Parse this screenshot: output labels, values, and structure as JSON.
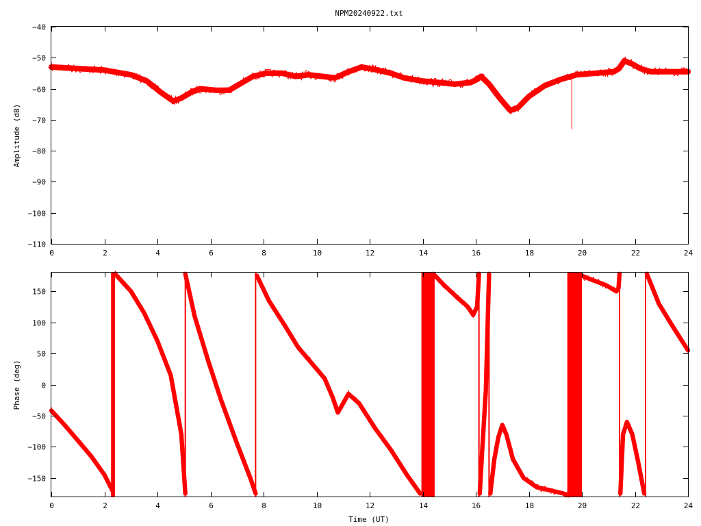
{
  "title": "NPM20240922.txt",
  "colors": {
    "trace": "#ff0000",
    "frame": "#000000",
    "background": "#ffffff"
  },
  "chart_data": [
    {
      "type": "line",
      "panel": "amplitude",
      "ylabel": "Amplitude (dB)",
      "xlabel": "",
      "xlim": [
        0,
        24
      ],
      "ylim": [
        -110,
        -40
      ],
      "xticks": [
        0,
        2,
        4,
        6,
        8,
        10,
        12,
        14,
        16,
        18,
        20,
        22,
        24
      ],
      "yticks": [
        -110,
        -100,
        -90,
        -80,
        -70,
        -60,
        -50,
        -40
      ],
      "ytick_labels": [
        "−110",
        "−100",
        "−90",
        "−80",
        "−70",
        "−60",
        "−50",
        "−40"
      ],
      "grid": false,
      "band_width_db": 1.8,
      "series": [
        {
          "x": [
            0,
            1,
            2,
            3,
            3.6,
            4.1,
            4.6,
            4.9,
            5.3,
            5.6,
            6.2,
            6.7,
            7.2,
            7.6,
            8.1,
            8.7,
            9.2,
            9.7,
            10.2,
            10.7,
            11.2,
            11.7,
            12.3,
            12.8,
            13.3,
            14,
            14.6,
            15.2,
            15.8,
            16.05,
            16.2,
            16.5,
            16.9,
            17.3,
            17.6,
            18,
            18.6,
            19.2,
            19.8,
            20.5,
            21.2,
            21.4,
            21.6,
            21.9,
            22.2,
            22.6,
            23.2,
            24
          ],
          "values": [
            -53,
            -53.5,
            -54,
            -55.5,
            -57.5,
            -61,
            -64,
            -63,
            -61,
            -60,
            -60.5,
            -60.5,
            -58,
            -56,
            -55,
            -55,
            -56,
            -55.5,
            -56,
            -56.5,
            -54.5,
            -53,
            -54,
            -55,
            -56.5,
            -57.5,
            -58,
            -58.5,
            -58,
            -57,
            -56,
            -58.5,
            -63,
            -67,
            -66,
            -62.5,
            -59,
            -57,
            -55.5,
            -55,
            -54.5,
            -53.5,
            -51,
            -52,
            -53.5,
            -54.5,
            -54.5,
            -54.5
          ]
        }
      ],
      "spikes": [
        {
          "x": 19.62,
          "from": -55.5,
          "to": -73
        }
      ]
    },
    {
      "type": "line",
      "panel": "phase",
      "ylabel": "Phase (deg)",
      "xlabel": "Time (UT)",
      "xlim": [
        0,
        24
      ],
      "ylim": [
        -180,
        180
      ],
      "xticks": [
        0,
        2,
        4,
        6,
        8,
        10,
        12,
        14,
        16,
        18,
        20,
        22,
        24
      ],
      "yticks": [
        -150,
        -100,
        -50,
        0,
        50,
        100,
        150
      ],
      "ytick_labels": [
        "−150",
        "−100",
        "−50",
        "0",
        "50",
        "100",
        "150"
      ],
      "grid": false,
      "band_width_deg": 7,
      "series": [
        {
          "x": [
            0,
            0.5,
            1,
            1.5,
            2,
            2.3
          ],
          "values": [
            -42,
            -65,
            -90,
            -115,
            -145,
            -170
          ]
        },
        {
          "x": [
            2.4,
            3,
            3.5,
            4,
            4.5,
            4.9,
            5.05
          ],
          "values": [
            178,
            150,
            115,
            70,
            15,
            -80,
            -175
          ]
        },
        {
          "x": [
            5.05,
            5.4,
            5.9,
            6.4,
            7,
            7.5,
            7.7
          ],
          "values": [
            178,
            110,
            40,
            -25,
            -95,
            -150,
            -175
          ]
        },
        {
          "x": [
            7.75,
            8.2,
            8.8,
            9.3,
            9.8,
            10.3,
            10.6,
            10.8,
            11,
            11.2,
            11.6,
            12.2,
            12.8,
            13.4,
            13.9
          ],
          "values": [
            175,
            135,
            95,
            60,
            35,
            10,
            -20,
            -45,
            -30,
            -15,
            -30,
            -70,
            -105,
            -145,
            -175
          ]
        },
        {
          "x": [
            14.4,
            14.8,
            15.3,
            15.7,
            15.9,
            16.05,
            16.12
          ],
          "values": [
            178,
            160,
            140,
            125,
            112,
            125,
            178
          ]
        },
        {
          "x": [
            16.15,
            16.25,
            16.38,
            16.5
          ],
          "values": [
            -175,
            -100,
            -10,
            178
          ]
        },
        {
          "x": [
            16.55,
            16.7,
            16.85,
            17,
            17.15,
            17.4,
            17.8,
            18.3,
            18.8,
            19.3,
            19.5
          ],
          "values": [
            -175,
            -120,
            -85,
            -65,
            -80,
            -120,
            -150,
            -165,
            -170,
            -175,
            -178
          ]
        },
        {
          "x": [
            20,
            20.4,
            20.9,
            21.3,
            21.38,
            21.42
          ],
          "values": [
            175,
            168,
            160,
            150,
            155,
            178
          ]
        },
        {
          "x": [
            21.45,
            21.55,
            21.7,
            21.9,
            22.1,
            22.35
          ],
          "values": [
            -175,
            -80,
            -60,
            -80,
            -120,
            -175
          ]
        },
        {
          "x": [
            22.45,
            22.9,
            23.4,
            24
          ],
          "values": [
            178,
            130,
            95,
            55
          ]
        }
      ],
      "dense_bands": [
        [
          2.25,
          2.4
        ],
        [
          13.95,
          14.45
        ],
        [
          19.45,
          20.0
        ]
      ],
      "wrap_lines": [
        5.05,
        7.7,
        16.12,
        16.5,
        21.42,
        22.4
      ]
    }
  ]
}
